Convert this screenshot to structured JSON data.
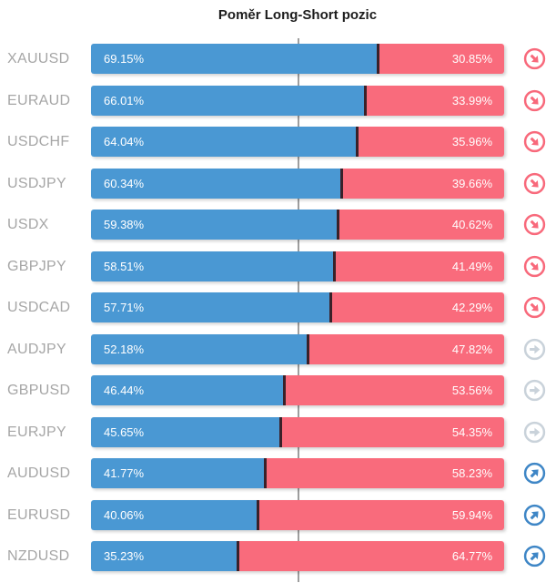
{
  "title": "Poměr Long-Short pozic",
  "colors": {
    "long_bar": "#4a98d3",
    "short_bar": "#f96b7c",
    "bar_divider": "#3a2129",
    "center_line": "#9e9e9e",
    "pair_label": "#a6a6a6",
    "trend_down_icon": "#f8697b",
    "trend_flat_icon": "#c9d2da",
    "trend_up_icon": "#3e86c6"
  },
  "rows": [
    {
      "pair": "XAUUSD",
      "long": "69.15%",
      "short": "30.85%",
      "long_pct": 69.15,
      "trend": "down"
    },
    {
      "pair": "EURAUD",
      "long": "66.01%",
      "short": "33.99%",
      "long_pct": 66.01,
      "trend": "down"
    },
    {
      "pair": "USDCHF",
      "long": "64.04%",
      "short": "35.96%",
      "long_pct": 64.04,
      "trend": "down"
    },
    {
      "pair": "USDJPY",
      "long": "60.34%",
      "short": "39.66%",
      "long_pct": 60.34,
      "trend": "down"
    },
    {
      "pair": "USDX",
      "long": "59.38%",
      "short": "40.62%",
      "long_pct": 59.38,
      "trend": "down"
    },
    {
      "pair": "GBPJPY",
      "long": "58.51%",
      "short": "41.49%",
      "long_pct": 58.51,
      "trend": "down"
    },
    {
      "pair": "USDCAD",
      "long": "57.71%",
      "short": "42.29%",
      "long_pct": 57.71,
      "trend": "down"
    },
    {
      "pair": "AUDJPY",
      "long": "52.18%",
      "short": "47.82%",
      "long_pct": 52.18,
      "trend": "flat"
    },
    {
      "pair": "GBPUSD",
      "long": "46.44%",
      "short": "53.56%",
      "long_pct": 46.44,
      "trend": "flat"
    },
    {
      "pair": "EURJPY",
      "long": "45.65%",
      "short": "54.35%",
      "long_pct": 45.65,
      "trend": "flat"
    },
    {
      "pair": "AUDUSD",
      "long": "41.77%",
      "short": "58.23%",
      "long_pct": 41.77,
      "trend": "up"
    },
    {
      "pair": "EURUSD",
      "long": "40.06%",
      "short": "59.94%",
      "long_pct": 40.06,
      "trend": "up"
    },
    {
      "pair": "NZDUSD",
      "long": "35.23%",
      "short": "64.77%",
      "long_pct": 35.23,
      "trend": "up"
    }
  ],
  "chart_data": {
    "type": "bar",
    "orientation": "horizontal-stacked",
    "title": "Poměr Long-Short pozic",
    "categories": [
      "XAUUSD",
      "EURAUD",
      "USDCHF",
      "USDJPY",
      "USDX",
      "GBPJPY",
      "USDCAD",
      "AUDJPY",
      "GBPUSD",
      "EURJPY",
      "AUDUSD",
      "EURUSD",
      "NZDUSD"
    ],
    "series": [
      {
        "name": "Long %",
        "color": "#4a98d3",
        "values": [
          69.15,
          66.01,
          64.04,
          60.34,
          59.38,
          58.51,
          57.71,
          52.18,
          46.44,
          45.65,
          41.77,
          40.06,
          35.23
        ]
      },
      {
        "name": "Short %",
        "color": "#f96b7c",
        "values": [
          30.85,
          33.99,
          35.96,
          39.66,
          40.62,
          41.49,
          42.29,
          47.82,
          53.56,
          54.35,
          58.23,
          59.94,
          64.77
        ]
      }
    ],
    "xlim": [
      0,
      100
    ],
    "reference_line": {
      "value": 50,
      "style": "vertical gray line at center"
    },
    "trend_indicators": [
      "down",
      "down",
      "down",
      "down",
      "down",
      "down",
      "down",
      "flat",
      "flat",
      "flat",
      "up",
      "up",
      "up"
    ],
    "legend": "none",
    "grid": "off",
    "data_labels": "percent shown inside both segments"
  }
}
